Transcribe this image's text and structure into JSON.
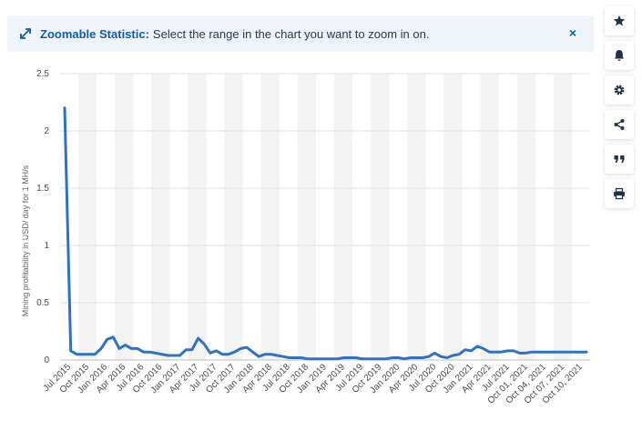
{
  "banner": {
    "title": "Zoomable Statistic:",
    "message": "Select the range in the chart you want to zoom in on.",
    "close_label": "×",
    "accent": "#0e5ea8",
    "expand_icon": "expand-arrows-icon"
  },
  "toolbar": [
    {
      "name": "star-icon",
      "label": "Favorite"
    },
    {
      "name": "bell-icon",
      "label": "Notifications"
    },
    {
      "name": "gear-icon",
      "label": "Settings"
    },
    {
      "name": "share-icon",
      "label": "Share"
    },
    {
      "name": "quote-icon",
      "label": "Cite"
    },
    {
      "name": "print-icon",
      "label": "Print"
    }
  ],
  "chart_data": {
    "type": "line",
    "title": "",
    "xlabel": "",
    "ylabel": "Mining profitability in USD/ day for 1 MH/s",
    "ylim": [
      0,
      2.5
    ],
    "yticks": [
      "0",
      "0.5",
      "1",
      "1.5",
      "2",
      "2.5"
    ],
    "grid": true,
    "line_color": "#2f72c4",
    "x_tick_labels": [
      "Jul 2015",
      "Oct 2015",
      "Jan 2016",
      "Apr 2016",
      "Jul 2016",
      "Oct 2016",
      "Jan 2017",
      "Apr 2017",
      "Jul 2017",
      "Oct 2017",
      "Jan 2018",
      "Apr 2018",
      "Jul 2018",
      "Oct 2018",
      "Jan 2019",
      "Apr 2019",
      "Jul 2019",
      "Oct 2019",
      "Jan 2020",
      "Apr 2020",
      "Jul 2020",
      "Oct 2020",
      "Jan 2021",
      "Apr 2021",
      "Jul 2021",
      "Oct 01, 2021",
      "Oct 04, 2021",
      "Oct 07, 2021",
      "Oct 10, 2021"
    ],
    "series": [
      {
        "name": "",
        "values": [
          2.2,
          0.08,
          0.05,
          0.05,
          0.05,
          0.05,
          0.1,
          0.18,
          0.2,
          0.1,
          0.13,
          0.1,
          0.1,
          0.07,
          0.07,
          0.06,
          0.05,
          0.04,
          0.04,
          0.04,
          0.09,
          0.09,
          0.19,
          0.14,
          0.06,
          0.08,
          0.05,
          0.05,
          0.07,
          0.1,
          0.11,
          0.07,
          0.03,
          0.05,
          0.05,
          0.04,
          0.03,
          0.02,
          0.02,
          0.02,
          0.01,
          0.01,
          0.01,
          0.01,
          0.01,
          0.01,
          0.02,
          0.02,
          0.02,
          0.01,
          0.01,
          0.01,
          0.01,
          0.01,
          0.02,
          0.02,
          0.01,
          0.02,
          0.02,
          0.02,
          0.03,
          0.06,
          0.03,
          0.02,
          0.04,
          0.05,
          0.09,
          0.08,
          0.12,
          0.1,
          0.07,
          0.07,
          0.07,
          0.08,
          0.08,
          0.06,
          0.06,
          0.07,
          0.07,
          0.07,
          0.07,
          0.07,
          0.07,
          0.07,
          0.07,
          0.07,
          0.07
        ]
      }
    ]
  }
}
